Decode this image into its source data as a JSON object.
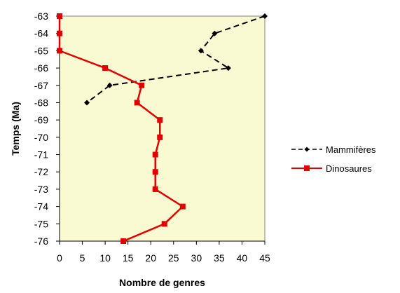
{
  "chart_data": {
    "type": "line",
    "xlabel": "Nombre de genres",
    "ylabel": "Temps (Ma)",
    "xlim": [
      0,
      45
    ],
    "ylim": [
      -76,
      -63
    ],
    "x_ticks": [
      "0",
      "5",
      "10",
      "15",
      "20",
      "25",
      "30",
      "35",
      "40",
      "45"
    ],
    "y_ticks": [
      "-63",
      "-64",
      "-65",
      "-66",
      "-67",
      "-68",
      "-69",
      "-70",
      "-71",
      "-72",
      "-73",
      "-74",
      "-75",
      "-76"
    ],
    "grid": false,
    "legend_position": "right",
    "plot_background": "#fafad2",
    "series": [
      {
        "name": "Mammifères",
        "color": "#000000",
        "line_style": "dashed",
        "marker": "diamond",
        "points": [
          {
            "x": 45,
            "y": -63
          },
          {
            "x": 34,
            "y": -64
          },
          {
            "x": 31,
            "y": -65
          },
          {
            "x": 37,
            "y": -66
          },
          {
            "x": 11,
            "y": -67
          },
          {
            "x": 6,
            "y": -68
          }
        ]
      },
      {
        "name": "Dinosaures",
        "color": "#e00000",
        "line_style": "solid",
        "marker": "square",
        "points": [
          {
            "x": 0,
            "y": -63
          },
          {
            "x": 0,
            "y": -64
          },
          {
            "x": 0,
            "y": -65
          },
          {
            "x": 10,
            "y": -66
          },
          {
            "x": 18,
            "y": -67
          },
          {
            "x": 17,
            "y": -68
          },
          {
            "x": 22,
            "y": -69
          },
          {
            "x": 22,
            "y": -70
          },
          {
            "x": 21,
            "y": -71
          },
          {
            "x": 21,
            "y": -72
          },
          {
            "x": 21,
            "y": -73
          },
          {
            "x": 27,
            "y": -74
          },
          {
            "x": 23,
            "y": -75
          },
          {
            "x": 14,
            "y": -76
          }
        ]
      }
    ]
  }
}
